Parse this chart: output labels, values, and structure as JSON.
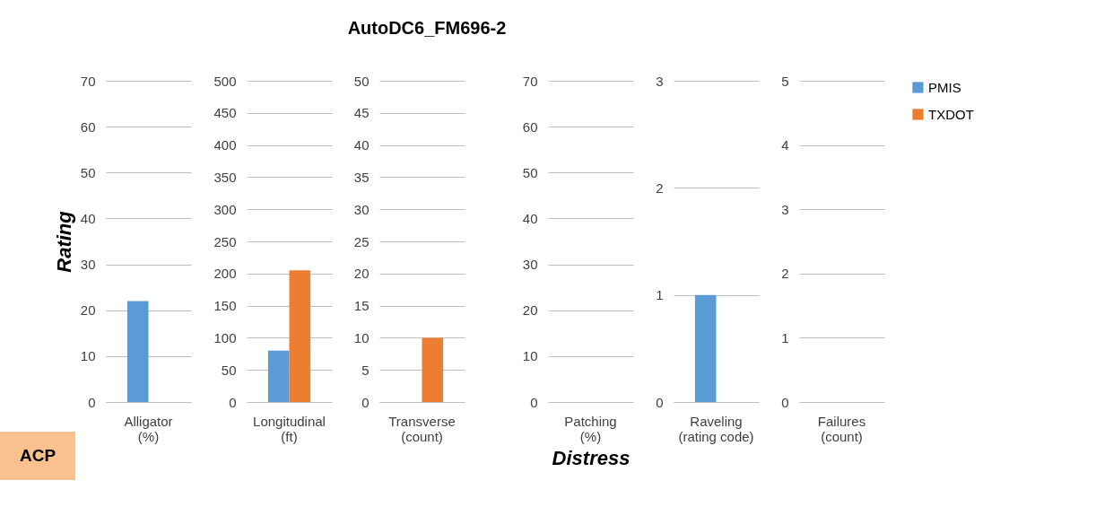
{
  "chart_data": [
    {
      "type": "bar",
      "ylabel": "Rating",
      "annotations": [
        "ACP"
      ],
      "categories": [
        "Alligator (%)"
      ],
      "series": [
        {
          "color": "#5b9bd5",
          "values": [
            22
          ]
        },
        {
          "color": "#ed7d31",
          "values": [
            null
          ]
        }
      ],
      "ylim": [
        0,
        70
      ],
      "yticks": [
        0,
        10,
        20,
        30,
        40,
        50,
        60,
        70
      ],
      "grid": "y"
    },
    {
      "type": "bar",
      "categories": [
        "Longitudinal (ft)"
      ],
      "series": [
        {
          "color": "#5b9bd5",
          "values": [
            80
          ]
        },
        {
          "color": "#ed7d31",
          "values": [
            205
          ]
        }
      ],
      "ylim": [
        0,
        500
      ],
      "yticks": [
        0,
        50,
        100,
        150,
        200,
        250,
        300,
        350,
        400,
        450,
        500
      ],
      "grid": "y"
    },
    {
      "type": "bar",
      "title": "AutoDC6_FM696-2",
      "categories": [
        "Transverse (count)"
      ],
      "series": [
        {
          "color": "#5b9bd5",
          "values": [
            null
          ]
        },
        {
          "color": "#ed7d31",
          "values": [
            10
          ]
        }
      ],
      "ylim": [
        0,
        50
      ],
      "yticks": [
        0,
        5,
        10,
        15,
        20,
        25,
        30,
        35,
        40,
        45,
        50
      ],
      "grid": "y"
    },
    {
      "type": "bar",
      "xlabel": "Distress",
      "categories": [
        "Patching (%)"
      ],
      "series": [
        {
          "color": "#5b9bd5",
          "values": [
            null
          ]
        },
        {
          "color": "#ed7d31",
          "values": [
            null
          ]
        }
      ],
      "ylim": [
        0,
        70
      ],
      "yticks": [
        0,
        10,
        20,
        30,
        40,
        50,
        60,
        70
      ],
      "grid": "y"
    },
    {
      "type": "bar",
      "categories": [
        "Raveling (rating code)"
      ],
      "series": [
        {
          "color": "#5b9bd5",
          "values": [
            1
          ]
        },
        {
          "color": "#ed7d31",
          "values": [
            null
          ]
        }
      ],
      "ylim": [
        0,
        3
      ],
      "yticks": [
        0,
        1,
        2,
        3
      ],
      "grid": "y"
    },
    {
      "type": "bar",
      "categories": [
        "Failures (count)"
      ],
      "series": [
        {
          "name": "PMIS",
          "color": "#5b9bd5",
          "values": [
            null
          ]
        },
        {
          "name": "TXDOT",
          "color": "#ed7d31",
          "values": [
            null
          ]
        }
      ],
      "ylim": [
        0,
        5
      ],
      "yticks": [
        0,
        1,
        2,
        3,
        4,
        5
      ],
      "grid": "y",
      "legend": "right"
    }
  ]
}
